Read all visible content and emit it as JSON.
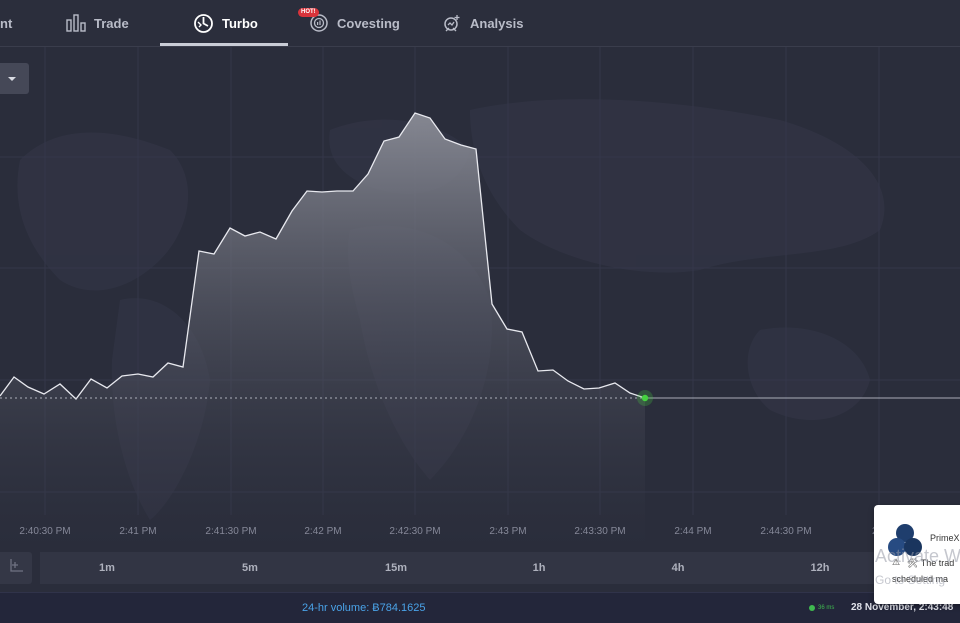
{
  "nav": {
    "items": [
      {
        "label": "nt",
        "icon": "partial-icon"
      },
      {
        "label": "Trade",
        "icon": "bar-chart-icon"
      },
      {
        "label": "Turbo",
        "icon": "turbo-icon",
        "active": true
      },
      {
        "label": "Covesting",
        "icon": "covesting-icon",
        "badge": "HOT!"
      },
      {
        "label": "Analysis",
        "icon": "analysis-icon"
      }
    ]
  },
  "chart_data": {
    "type": "area",
    "x_axis_labels": [
      "2:40:30 PM",
      "2:41 PM",
      "2:41:30 PM",
      "2:42 PM",
      "2:42:30 PM",
      "2:43 PM",
      "2:43:30 PM",
      "2:44 PM",
      "2:44:30 PM",
      "2:4"
    ],
    "series": [
      {
        "values": [
          [
            0,
            396
          ],
          [
            14,
            377
          ],
          [
            28,
            387
          ],
          [
            44,
            394
          ],
          [
            60,
            384
          ],
          [
            76,
            399
          ],
          [
            91,
            379
          ],
          [
            107,
            388
          ],
          [
            122,
            376
          ],
          [
            138,
            374
          ],
          [
            153,
            377
          ],
          [
            168,
            363
          ],
          [
            183,
            367
          ],
          [
            199,
            251
          ],
          [
            214,
            254
          ],
          [
            230,
            228
          ],
          [
            245,
            236
          ],
          [
            260,
            232
          ],
          [
            276,
            239
          ],
          [
            292,
            211
          ],
          [
            307,
            191
          ],
          [
            322,
            192
          ],
          [
            337,
            191
          ],
          [
            353,
            191
          ],
          [
            368,
            174
          ],
          [
            384,
            141
          ],
          [
            399,
            137
          ],
          [
            415,
            113
          ],
          [
            430,
            118
          ],
          [
            445,
            139
          ],
          [
            461,
            145
          ],
          [
            476,
            149
          ],
          [
            492,
            304
          ],
          [
            507,
            329
          ],
          [
            522,
            332
          ],
          [
            538,
            371
          ],
          [
            553,
            370
          ],
          [
            568,
            381
          ],
          [
            584,
            389
          ],
          [
            599,
            388
          ],
          [
            615,
            383
          ],
          [
            630,
            393
          ],
          [
            645,
            398
          ]
        ]
      }
    ],
    "current_level": 398,
    "current_point": [
      645,
      398
    ],
    "colors": {
      "line": "#e8e9ef",
      "area_top": "#8a8c96",
      "area_bottom": "#2a2d3b",
      "current_dot": "#46d140",
      "grid": "#34374a"
    }
  },
  "timeframes": [
    "1m",
    "5m",
    "15m",
    "1h",
    "4h",
    "12h"
  ],
  "status": {
    "volume": "24-hr volume: Ƀ784.1625",
    "ping": "36 ms",
    "datetime": "28 November, 2:43:48"
  },
  "toast": {
    "title": "PrimeX",
    "warn_icon": "⚠",
    "message_line1": "🛠 The trad",
    "message_line2": "scheduled ma"
  },
  "watermark": {
    "line1": "Activate W",
    "line2": "Go to Setting"
  }
}
